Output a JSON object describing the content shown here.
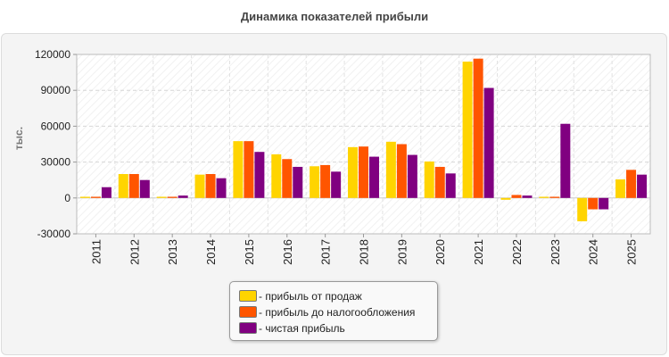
{
  "chart_data": {
    "type": "bar",
    "title": "Динамика показателей прибыли",
    "ylabel": "тыс.",
    "xlabel": "",
    "ylim": [
      -30000,
      120000
    ],
    "yticks": [
      -30000,
      0,
      30000,
      60000,
      90000,
      120000
    ],
    "grid": true,
    "legend_position": "bottom-center",
    "categories": [
      "2011",
      "2012",
      "2013",
      "2014",
      "2015",
      "2016",
      "2017",
      "2018",
      "2019",
      "2020",
      "2021",
      "2022",
      "2023",
      "2024",
      "2025"
    ],
    "series": [
      {
        "name": "- прибыль от продаж",
        "color": "#ffd400",
        "values": [
          1000,
          20000,
          1000,
          19500,
          47500,
          36500,
          26500,
          42500,
          47000,
          30500,
          114000,
          -1500,
          1000,
          -19500,
          15500
        ]
      },
      {
        "name": "- прибыль до налогообложения",
        "color": "#ff5500",
        "values": [
          1000,
          20000,
          1000,
          20000,
          47500,
          32500,
          27500,
          43000,
          45000,
          26000,
          116500,
          2500,
          1000,
          -9500,
          23500
        ]
      },
      {
        "name": "- чистая прибыль",
        "color": "#800080",
        "values": [
          9000,
          15000,
          2000,
          16500,
          38500,
          26000,
          22000,
          34500,
          36000,
          20500,
          92000,
          2000,
          62000,
          -9500,
          19500
        ]
      }
    ]
  }
}
